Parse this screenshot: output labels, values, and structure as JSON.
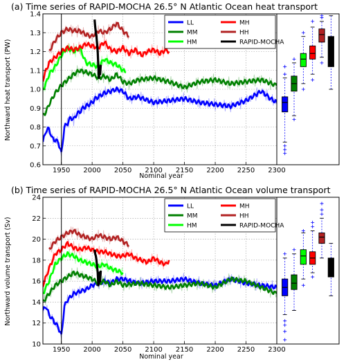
{
  "chart_data": [
    {
      "type": "line",
      "title": "(a) Time series of RAPID-MOCHA 26.5° N Atlantic Ocean heat transport",
      "xlabel": "Nominal year",
      "ylabel": "Northward heat transport (PW)",
      "xlim": [
        1920,
        2300
      ],
      "ylim": [
        0.6,
        1.4
      ],
      "xticks": [
        1950,
        2000,
        2050,
        2100,
        2150,
        2200,
        2250,
        2300
      ],
      "yticks": [
        0.6,
        0.7,
        0.8,
        0.9,
        1.0,
        1.1,
        1.2,
        1.3,
        1.4
      ],
      "vline_x": 1950,
      "grid": true,
      "legend_position": "top-right",
      "series": [
        {
          "name": "LL",
          "color": "#0000ff",
          "x": [
            1920,
            1925,
            1930,
            1935,
            1940,
            1945,
            1950,
            1955,
            1960,
            1965,
            1970,
            1975,
            1980,
            1985,
            1990,
            1995,
            2000,
            2005,
            2010,
            2015,
            2020,
            2030,
            2040,
            2050,
            2060,
            2075,
            2100,
            2125,
            2150,
            2175,
            2200,
            2225,
            2250,
            2275,
            2290,
            2300
          ],
          "y": [
            0.72,
            0.78,
            0.79,
            0.74,
            0.73,
            0.72,
            0.66,
            0.8,
            0.82,
            0.85,
            0.84,
            0.87,
            0.88,
            0.9,
            0.91,
            0.92,
            0.93,
            0.95,
            0.96,
            0.97,
            0.98,
            0.99,
            1.0,
            0.99,
            0.95,
            0.96,
            0.93,
            0.94,
            0.95,
            0.93,
            0.92,
            0.91,
            0.94,
            0.99,
            0.95,
            0.93
          ]
        },
        {
          "name": "MM",
          "color": "#008000",
          "x": [
            1920,
            1925,
            1930,
            1935,
            1940,
            1945,
            1950,
            1960,
            1970,
            1980,
            1990,
            2000,
            2010,
            2020,
            2030,
            2040,
            2050,
            2060,
            2075,
            2100,
            2125,
            2150,
            2175,
            2200,
            2225,
            2250,
            2275,
            2300
          ],
          "y": [
            0.86,
            0.88,
            0.92,
            0.95,
            0.98,
            1.0,
            1.02,
            1.05,
            1.08,
            1.1,
            1.09,
            1.08,
            1.06,
            1.07,
            1.05,
            1.08,
            1.04,
            1.03,
            1.05,
            1.06,
            1.04,
            1.01,
            1.04,
            1.05,
            1.03,
            1.04,
            1.05,
            1.02
          ]
        },
        {
          "name": "HM",
          "color": "#00ff00",
          "x": [
            1920,
            1925,
            1930,
            1940,
            1950,
            1960,
            1970,
            1980,
            1990,
            2000,
            2010,
            2020,
            2030,
            2040,
            2050,
            2055
          ],
          "y": [
            1.0,
            1.03,
            1.08,
            1.12,
            1.18,
            1.22,
            1.2,
            1.22,
            1.14,
            1.13,
            1.12,
            1.16,
            1.14,
            1.13,
            1.1,
            1.09
          ]
        },
        {
          "name": "MH",
          "color": "#ff0000",
          "x": [
            1920,
            1925,
            1930,
            1940,
            1950,
            1960,
            1970,
            1980,
            1990,
            2000,
            2010,
            2020,
            2030,
            2040,
            2050,
            2060,
            2070,
            2080,
            2090,
            2100,
            2110,
            2120,
            2125
          ],
          "y": [
            1.05,
            1.1,
            1.14,
            1.17,
            1.2,
            1.22,
            1.21,
            1.22,
            1.24,
            1.23,
            1.22,
            1.25,
            1.21,
            1.2,
            1.22,
            1.19,
            1.21,
            1.18,
            1.2,
            1.21,
            1.19,
            1.21,
            1.2
          ]
        },
        {
          "name": "HH",
          "color": "#b22222",
          "x": [
            1930,
            1940,
            1950,
            1960,
            1970,
            1980,
            1990,
            2000,
            2010,
            2020,
            2030,
            2040,
            2050,
            2060
          ],
          "y": [
            1.2,
            1.26,
            1.3,
            1.32,
            1.31,
            1.31,
            1.29,
            1.28,
            1.31,
            1.3,
            1.32,
            1.35,
            1.31,
            1.28
          ]
        },
        {
          "name": "RAPID-MOCHA",
          "color": "#000000",
          "x": [
            2004,
            2005,
            2006,
            2007,
            2008,
            2009,
            2010,
            2011,
            2012,
            2013,
            2014
          ],
          "y": [
            1.37,
            1.33,
            1.3,
            1.28,
            1.24,
            1.2,
            1.12,
            1.06,
            1.1,
            1.08,
            1.13
          ]
        }
      ],
      "boxplots": [
        {
          "name": "LL",
          "color": "#0000ff",
          "min": 0.72,
          "q1": 0.88,
          "median": 0.93,
          "q3": 0.96,
          "max": 1.06,
          "outliers_low": [
            0.66,
            0.68,
            0.7
          ],
          "outliers_high": [
            1.08,
            1.12
          ]
        },
        {
          "name": "MM",
          "color": "#008000",
          "min": 0.86,
          "q1": 0.99,
          "median": 1.03,
          "q3": 1.07,
          "max": 1.14,
          "outliers_low": [
            0.84
          ],
          "outliers_high": [
            1.16
          ]
        },
        {
          "name": "HM",
          "color": "#00ff00",
          "min": 1.03,
          "q1": 1.12,
          "median": 1.16,
          "q3": 1.19,
          "max": 1.28,
          "outliers_low": [
            1.0
          ],
          "outliers_high": [
            1.3
          ]
        },
        {
          "name": "MH",
          "color": "#ff0000",
          "min": 1.08,
          "q1": 1.16,
          "median": 1.19,
          "q3": 1.23,
          "max": 1.33,
          "outliers_low": [
            1.05
          ],
          "outliers_high": [
            1.36
          ]
        },
        {
          "name": "HH",
          "color": "#b22222",
          "min": 1.17,
          "q1": 1.25,
          "median": 1.29,
          "q3": 1.32,
          "max": 1.36,
          "outliers_low": [
            1.14
          ],
          "outliers_high": [
            1.38,
            1.39
          ]
        },
        {
          "name": "RAPID-MOCHA",
          "color": "#000000",
          "min": 1.0,
          "q1": 1.12,
          "median": 1.2,
          "q3": 1.28,
          "max": 1.39,
          "outliers_low": [],
          "outliers_high": []
        }
      ]
    },
    {
      "type": "line",
      "title": "(b) Time series of RAPID-MOCHA 26.5° N Atlantic Ocean volume transport",
      "xlabel": "Nominal year",
      "ylabel": "Northward volume transport (Sv)",
      "xlim": [
        1920,
        2300
      ],
      "ylim": [
        10,
        24
      ],
      "xticks": [
        1950,
        2000,
        2050,
        2100,
        2150,
        2200,
        2250,
        2300
      ],
      "yticks": [
        10,
        12,
        14,
        16,
        18,
        20,
        22,
        24
      ],
      "vline_x": 1950,
      "grid": true,
      "legend_position": "top-right",
      "series": [
        {
          "name": "LL",
          "color": "#0000ff",
          "x": [
            1920,
            1925,
            1930,
            1935,
            1940,
            1945,
            1950,
            1955,
            1960,
            1970,
            1980,
            1990,
            2000,
            2010,
            2020,
            2030,
            2040,
            2050,
            2075,
            2100,
            2125,
            2150,
            2175,
            2200,
            2225,
            2250,
            2275,
            2300
          ],
          "y": [
            13.2,
            13.6,
            12.8,
            12.4,
            12.0,
            11.6,
            10.8,
            13.6,
            14.2,
            14.8,
            15.0,
            15.2,
            15.6,
            15.8,
            16.0,
            15.8,
            16.2,
            16.2,
            15.8,
            16.0,
            16.0,
            16.2,
            15.8,
            15.6,
            16.2,
            15.8,
            15.6,
            15.4
          ]
        },
        {
          "name": "MM",
          "color": "#008000",
          "x": [
            1920,
            1930,
            1940,
            1950,
            1960,
            1970,
            1980,
            1990,
            2000,
            2010,
            2020,
            2030,
            2040,
            2050,
            2075,
            2100,
            2125,
            2150,
            2175,
            2200,
            2225,
            2250,
            2275,
            2300
          ],
          "y": [
            14.0,
            14.8,
            15.6,
            16.0,
            16.4,
            16.8,
            16.6,
            16.4,
            16.2,
            15.8,
            16.0,
            15.6,
            16.0,
            15.6,
            15.8,
            15.6,
            15.4,
            15.6,
            15.8,
            15.4,
            16.2,
            16.0,
            15.4,
            14.8
          ]
        },
        {
          "name": "HM",
          "color": "#00ff00",
          "x": [
            1920,
            1930,
            1940,
            1950,
            1960,
            1970,
            1980,
            1990,
            2000,
            2010,
            2020,
            2030,
            2040,
            2050
          ],
          "y": [
            14.8,
            16.0,
            17.6,
            18.2,
            18.6,
            18.4,
            18.0,
            17.8,
            17.6,
            17.4,
            17.6,
            17.2,
            17.0,
            16.8
          ]
        },
        {
          "name": "MH",
          "color": "#ff0000",
          "x": [
            1920,
            1930,
            1940,
            1950,
            1960,
            1970,
            1980,
            1990,
            2000,
            2010,
            2020,
            2030,
            2040,
            2050,
            2060,
            2070,
            2080,
            2090,
            2100,
            2110,
            2120,
            2125
          ],
          "y": [
            15.6,
            17.2,
            18.6,
            19.0,
            19.6,
            19.2,
            19.0,
            19.2,
            19.0,
            18.8,
            18.8,
            18.6,
            18.4,
            18.4,
            18.6,
            18.2,
            18.0,
            17.8,
            18.2,
            17.8,
            17.6,
            18.0
          ]
        },
        {
          "name": "HH",
          "color": "#b22222",
          "x": [
            1930,
            1940,
            1950,
            1960,
            1970,
            1980,
            1990,
            2000,
            2010,
            2020,
            2030,
            2040,
            2050,
            2060
          ],
          "y": [
            19.0,
            19.8,
            20.2,
            20.6,
            20.8,
            20.4,
            20.2,
            20.0,
            20.4,
            20.2,
            20.0,
            20.2,
            19.8,
            19.4
          ]
        },
        {
          "name": "RAPID-MOCHA",
          "color": "#000000",
          "x": [
            2004,
            2005,
            2006,
            2007,
            2008,
            2009,
            2010,
            2011,
            2012,
            2013,
            2014
          ],
          "y": [
            19.0,
            18.6,
            18.4,
            18.0,
            17.4,
            16.8,
            15.6,
            15.8,
            16.8,
            16.0,
            17.0
          ]
        }
      ],
      "boxplots": [
        {
          "name": "LL",
          "color": "#0000ff",
          "min": 12.8,
          "q1": 14.6,
          "median": 15.4,
          "q3": 16.2,
          "max": 18.2,
          "outliers_low": [
            10.4,
            11.2,
            11.8,
            12.2
          ],
          "outliers_high": [
            18.6
          ]
        },
        {
          "name": "MM",
          "color": "#008000",
          "min": 13.2,
          "q1": 15.2,
          "median": 15.8,
          "q3": 16.6,
          "max": 18.6,
          "outliers_low": [],
          "outliers_high": [
            19.0
          ]
        },
        {
          "name": "HM",
          "color": "#00ff00",
          "min": 16.2,
          "q1": 17.6,
          "median": 18.4,
          "q3": 19.0,
          "max": 20.6,
          "outliers_low": [
            15.6
          ],
          "outliers_high": [
            20.8
          ]
        },
        {
          "name": "MH",
          "color": "#ff0000",
          "min": 16.8,
          "q1": 17.6,
          "median": 18.2,
          "q3": 18.8,
          "max": 20.8,
          "outliers_low": [
            16.4
          ],
          "outliers_high": [
            21.2,
            21.6
          ]
        },
        {
          "name": "HH",
          "color": "#b22222",
          "min": 18.2,
          "q1": 19.6,
          "median": 20.2,
          "q3": 20.6,
          "max": 22.0,
          "outliers_low": [],
          "outliers_high": [
            22.4,
            22.8,
            23.4
          ]
        },
        {
          "name": "RAPID-MOCHA",
          "color": "#000000",
          "min": 14.6,
          "q1": 16.4,
          "median": 17.4,
          "q3": 18.2,
          "max": 19.6,
          "outliers_low": [],
          "outliers_high": []
        }
      ]
    }
  ]
}
